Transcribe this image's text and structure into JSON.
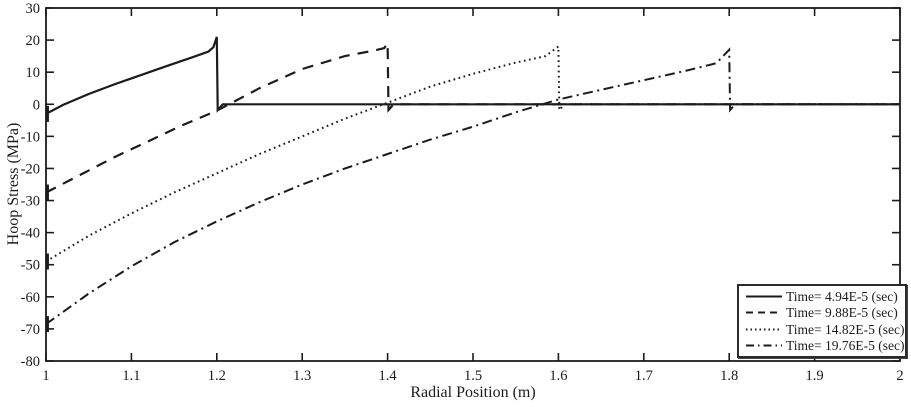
{
  "figure": {
    "background": "#ffffff",
    "ink_color": "#1c1c1c"
  },
  "chart_data": {
    "type": "line",
    "title": "",
    "xlabel": "Radial Position (m)",
    "ylabel": "Hoop Stress (MPa)",
    "xlim": [
      1,
      2
    ],
    "ylim": [
      -80,
      30
    ],
    "x_ticks": [
      1,
      1.1,
      1.2,
      1.3,
      1.4,
      1.5,
      1.6,
      1.7,
      1.8,
      1.9,
      2
    ],
    "x_tick_labels": [
      "1",
      "1.1",
      "1.2",
      "1.3",
      "1.4",
      "1.5",
      "1.6",
      "1.7",
      "1.8",
      "1.9",
      "2"
    ],
    "y_ticks": [
      30,
      20,
      10,
      0,
      -10,
      -20,
      -30,
      -40,
      -50,
      -60,
      -70,
      -80
    ],
    "grid": false,
    "legend_position": "lower-right",
    "series": [
      {
        "label": "Time= 4.94E-5 (sec)",
        "line_style": "solid",
        "color": "#1c1c1c",
        "wavefront_radius": 1.2,
        "inner_stress": -3,
        "peak_stress": 21,
        "points": [
          [
            1.0,
            -3
          ],
          [
            1.02,
            -0.2
          ],
          [
            1.05,
            3.2
          ],
          [
            1.08,
            6.2
          ],
          [
            1.11,
            9.0
          ],
          [
            1.14,
            11.8
          ],
          [
            1.17,
            14.5
          ],
          [
            1.19,
            16.4
          ],
          [
            1.196,
            17.8
          ],
          [
            1.2,
            21
          ],
          [
            1.201,
            -1.8
          ],
          [
            1.207,
            0
          ],
          [
            2.0,
            0
          ]
        ]
      },
      {
        "label": "Time= 9.88E-5 (sec)",
        "line_style": "dashed",
        "color": "#1c1c1c",
        "wavefront_radius": 1.4,
        "inner_stress": -27.5,
        "peak_stress": 19,
        "points": [
          [
            1.0,
            -27.5
          ],
          [
            1.04,
            -22
          ],
          [
            1.08,
            -16.5
          ],
          [
            1.12,
            -11.5
          ],
          [
            1.16,
            -6.5
          ],
          [
            1.2,
            -2
          ],
          [
            1.25,
            5
          ],
          [
            1.3,
            11
          ],
          [
            1.35,
            15
          ],
          [
            1.385,
            16.8
          ],
          [
            1.396,
            17.5
          ],
          [
            1.4,
            19
          ],
          [
            1.401,
            -1.8
          ],
          [
            1.407,
            0
          ],
          [
            2.0,
            0
          ]
        ]
      },
      {
        "label": "Time= 14.82E-5 (sec)",
        "line_style": "dotted",
        "color": "#1c1c1c",
        "wavefront_radius": 1.6,
        "inner_stress": -49,
        "peak_stress": 18,
        "points": [
          [
            1.0,
            -49
          ],
          [
            1.05,
            -41
          ],
          [
            1.1,
            -34
          ],
          [
            1.15,
            -27.5
          ],
          [
            1.2,
            -21.5
          ],
          [
            1.25,
            -15.5
          ],
          [
            1.3,
            -10
          ],
          [
            1.35,
            -4.5
          ],
          [
            1.4,
            0.5
          ],
          [
            1.45,
            5.5
          ],
          [
            1.5,
            9.5
          ],
          [
            1.55,
            13
          ],
          [
            1.585,
            15
          ],
          [
            1.6,
            18
          ],
          [
            1.601,
            -1.8
          ],
          [
            1.607,
            0
          ],
          [
            2.0,
            0
          ]
        ]
      },
      {
        "label": "Time= 19.76E-5 (sec)",
        "line_style": "dashdot",
        "color": "#1c1c1c",
        "wavefront_radius": 1.8,
        "inner_stress": -68.5,
        "peak_stress": 17,
        "points": [
          [
            1.0,
            -68.5
          ],
          [
            1.05,
            -59
          ],
          [
            1.1,
            -50.5
          ],
          [
            1.15,
            -43
          ],
          [
            1.2,
            -36.5
          ],
          [
            1.25,
            -30.5
          ],
          [
            1.3,
            -25
          ],
          [
            1.35,
            -20
          ],
          [
            1.4,
            -15.5
          ],
          [
            1.45,
            -11
          ],
          [
            1.5,
            -7
          ],
          [
            1.55,
            -2.5
          ],
          [
            1.6,
            1.5
          ],
          [
            1.65,
            4.5
          ],
          [
            1.7,
            7.5
          ],
          [
            1.75,
            10.5
          ],
          [
            1.785,
            12.8
          ],
          [
            1.8,
            17
          ],
          [
            1.801,
            -1.8
          ],
          [
            1.807,
            0
          ],
          [
            2.0,
            0
          ]
        ]
      }
    ]
  }
}
